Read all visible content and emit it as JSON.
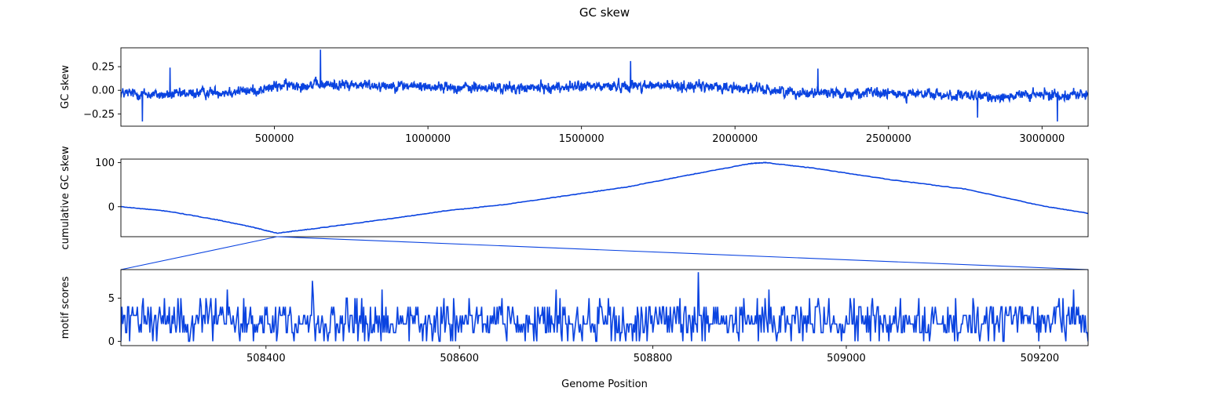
{
  "figure": {
    "title": "GC skew",
    "xlabel": "Genome Position",
    "line_color": "#0a43e0"
  },
  "chart_data": [
    {
      "type": "line",
      "ylabel": "GC skew",
      "xlim": [
        1,
        3150000
      ],
      "ylim": [
        -0.38,
        0.45
      ],
      "xticks": [
        500000,
        1000000,
        1500000,
        2000000,
        2500000,
        3000000
      ],
      "xtick_labels": [
        "500000",
        "1000000",
        "1500000",
        "2000000",
        "2500000",
        "3000000"
      ],
      "yticks": [
        0.25,
        0.0,
        -0.25
      ],
      "ytick_labels": [
        "0.25",
        "0.00",
        "−0.25"
      ],
      "series": [
        {
          "values_note_free": true,
          "x_start": 1,
          "x_step": 1000,
          "profile": [
            [
              0,
              -0.03
            ],
            [
              150000,
              -0.05
            ],
            [
              300000,
              -0.02
            ],
            [
              450000,
              0.0
            ],
            [
              520000,
              0.05
            ],
            [
              650000,
              0.06
            ],
            [
              900000,
              0.05
            ],
            [
              1100000,
              0.03
            ],
            [
              1300000,
              0.02
            ],
            [
              1500000,
              0.04
            ],
            [
              1700000,
              0.05
            ],
            [
              1900000,
              0.04
            ],
            [
              2050000,
              0.02
            ],
            [
              2200000,
              -0.02
            ],
            [
              2400000,
              -0.03
            ],
            [
              2600000,
              -0.04
            ],
            [
              2800000,
              -0.07
            ],
            [
              3000000,
              -0.05
            ],
            [
              3150000,
              -0.04
            ]
          ],
          "amplitude": 0.07,
          "peaks": [
            [
              650000,
              0.43
            ],
            [
              160000,
              0.24
            ],
            [
              70000,
              -0.33
            ],
            [
              1660000,
              0.31
            ],
            [
              2790000,
              -0.29
            ],
            [
              3050000,
              -0.33
            ],
            [
              2270000,
              0.23
            ]
          ]
        }
      ]
    },
    {
      "type": "line",
      "ylabel": "cumulative GC skew",
      "xlim": [
        1,
        3150000
      ],
      "ylim": [
        -68,
        108
      ],
      "yticks": [
        100,
        0
      ],
      "ytick_labels": [
        "100",
        "0"
      ],
      "series": [
        {
          "x": [
            1,
            150000,
            300000,
            420000,
            508400,
            650000,
            900000,
            1050000,
            1250000,
            1450000,
            1650000,
            1850000,
            2050000,
            2100000,
            2250000,
            2500000,
            2750000,
            3000000,
            3150000
          ],
          "y": [
            0,
            -10,
            -28,
            -45,
            -60,
            -48,
            -25,
            -10,
            5,
            25,
            45,
            72,
            98,
            100,
            88,
            62,
            40,
            2,
            -15
          ]
        }
      ],
      "zoom_x": 508400
    },
    {
      "type": "line",
      "ylabel": "motif scores",
      "xlim": [
        508250,
        509250
      ],
      "ylim": [
        -0.5,
        8.3
      ],
      "xticks": [
        508400,
        508600,
        508800,
        509000,
        509200
      ],
      "xtick_labels": [
        "508400",
        "508600",
        "508800",
        "509000",
        "509200"
      ],
      "yticks": [
        5,
        0
      ],
      "ytick_labels": [
        "5",
        "0"
      ],
      "series": [
        {
          "x_start": 508250,
          "x_step": 1,
          "mean": 2.3,
          "peaks": [
            [
              508448,
              7
            ],
            [
              508847,
              8
            ],
            [
              508520,
              6
            ],
            [
              508700,
              6
            ],
            [
              508920,
              6
            ],
            [
              509235,
              6
            ],
            [
              508360,
              6
            ],
            [
              508250,
              0
            ],
            [
              509250,
              0
            ]
          ]
        }
      ]
    }
  ]
}
